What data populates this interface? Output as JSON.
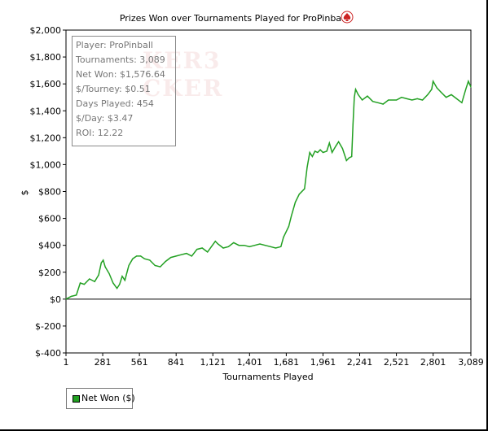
{
  "chart_data": {
    "type": "line",
    "title": "Prizes Won over Tournaments Played for ProPinball",
    "xlabel": "Tournaments Played",
    "ylabel": "$",
    "xlim": [
      1,
      3089
    ],
    "ylim": [
      -400,
      2000
    ],
    "x_ticks": [
      1,
      281,
      561,
      841,
      1121,
      1401,
      1681,
      1961,
      2241,
      2521,
      2801,
      3089
    ],
    "x_tick_labels": [
      "1",
      "281",
      "561",
      "841",
      "1,121",
      "1,401",
      "1,681",
      "1,961",
      "2,241",
      "2,521",
      "2,801",
      "3,089"
    ],
    "y_ticks": [
      -400,
      -200,
      0,
      200,
      400,
      600,
      800,
      1000,
      1200,
      1400,
      1600,
      1800,
      2000
    ],
    "y_tick_labels": [
      "$-400",
      "$-200",
      "$0",
      "$200",
      "$400",
      "$600",
      "$800",
      "$1,000",
      "$1,200",
      "$1,400",
      "$1,600",
      "$1,800",
      "$2,000"
    ],
    "grid": false,
    "legend_position": "bottom-left",
    "series": [
      {
        "name": "Net Won ($)",
        "color": "#22a022",
        "points": [
          [
            1,
            0
          ],
          [
            40,
            20
          ],
          [
            80,
            30
          ],
          [
            110,
            120
          ],
          [
            140,
            110
          ],
          [
            180,
            150
          ],
          [
            220,
            130
          ],
          [
            250,
            180
          ],
          [
            270,
            270
          ],
          [
            285,
            290
          ],
          [
            300,
            240
          ],
          [
            330,
            190
          ],
          [
            360,
            120
          ],
          [
            390,
            80
          ],
          [
            410,
            110
          ],
          [
            430,
            170
          ],
          [
            450,
            140
          ],
          [
            480,
            250
          ],
          [
            510,
            300
          ],
          [
            540,
            320
          ],
          [
            570,
            320
          ],
          [
            600,
            300
          ],
          [
            640,
            290
          ],
          [
            680,
            250
          ],
          [
            720,
            240
          ],
          [
            760,
            280
          ],
          [
            800,
            310
          ],
          [
            841,
            320
          ],
          [
            880,
            330
          ],
          [
            920,
            340
          ],
          [
            960,
            320
          ],
          [
            1000,
            370
          ],
          [
            1040,
            380
          ],
          [
            1080,
            350
          ],
          [
            1110,
            390
          ],
          [
            1140,
            430
          ],
          [
            1160,
            410
          ],
          [
            1200,
            380
          ],
          [
            1240,
            390
          ],
          [
            1280,
            420
          ],
          [
            1320,
            400
          ],
          [
            1360,
            400
          ],
          [
            1400,
            390
          ],
          [
            1440,
            400
          ],
          [
            1480,
            410
          ],
          [
            1520,
            400
          ],
          [
            1560,
            390
          ],
          [
            1600,
            380
          ],
          [
            1640,
            390
          ],
          [
            1660,
            460
          ],
          [
            1680,
            500
          ],
          [
            1700,
            540
          ],
          [
            1720,
            620
          ],
          [
            1750,
            720
          ],
          [
            1780,
            780
          ],
          [
            1820,
            820
          ],
          [
            1840,
            980
          ],
          [
            1860,
            1090
          ],
          [
            1880,
            1060
          ],
          [
            1900,
            1100
          ],
          [
            1920,
            1090
          ],
          [
            1940,
            1110
          ],
          [
            1961,
            1090
          ],
          [
            1990,
            1100
          ],
          [
            2010,
            1160
          ],
          [
            2030,
            1090
          ],
          [
            2060,
            1140
          ],
          [
            2080,
            1170
          ],
          [
            2110,
            1120
          ],
          [
            2140,
            1030
          ],
          [
            2160,
            1050
          ],
          [
            2180,
            1060
          ],
          [
            2190,
            1300
          ],
          [
            2200,
            1500
          ],
          [
            2210,
            1560
          ],
          [
            2230,
            1520
          ],
          [
            2260,
            1480
          ],
          [
            2300,
            1510
          ],
          [
            2340,
            1470
          ],
          [
            2380,
            1460
          ],
          [
            2420,
            1450
          ],
          [
            2460,
            1480
          ],
          [
            2521,
            1480
          ],
          [
            2560,
            1500
          ],
          [
            2600,
            1490
          ],
          [
            2640,
            1480
          ],
          [
            2680,
            1490
          ],
          [
            2720,
            1480
          ],
          [
            2760,
            1520
          ],
          [
            2790,
            1560
          ],
          [
            2801,
            1620
          ],
          [
            2830,
            1570
          ],
          [
            2860,
            1540
          ],
          [
            2900,
            1500
          ],
          [
            2940,
            1520
          ],
          [
            2980,
            1490
          ],
          [
            3020,
            1460
          ],
          [
            3050,
            1560
          ],
          [
            3070,
            1620
          ],
          [
            3089,
            1576.64
          ]
        ]
      }
    ]
  },
  "stats": {
    "player": "Player: ProPinball",
    "tournaments": "Tournaments: 3,089",
    "net_won": "Net Won: $1,576.64",
    "per_tourney": "$/Tourney: $0.51",
    "days_played": "Days Played: 454",
    "per_day": "$/Day: $3.47",
    "roi": "ROI: 12.22"
  },
  "watermark": {
    "line1": "KER3",
    "line2": "CKER"
  },
  "legend": {
    "label": "Net Won ($)"
  },
  "icons": {
    "title_icon": "spade-chip-icon",
    "title_icon_color": "#cc2222"
  }
}
